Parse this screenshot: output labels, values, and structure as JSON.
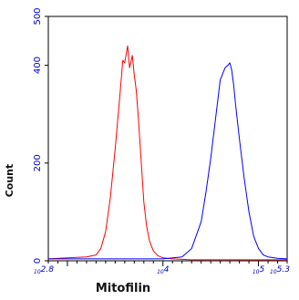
{
  "chart_data": {
    "type": "line",
    "title": "",
    "xlabel": "Mitofilin",
    "ylabel": "Count",
    "x_scale": "log",
    "xlim": [
      2.8,
      5.3
    ],
    "ylim": [
      0,
      500
    ],
    "grid": false,
    "y_ticks": [
      0,
      200,
      400,
      500
    ],
    "x_ticks": [
      {
        "value": 2.8,
        "label": "10^2.8"
      },
      {
        "value": 4,
        "label": "10^4"
      },
      {
        "value": 5,
        "label": "10^5"
      },
      {
        "value": 5.3,
        "label": "10^5.3"
      }
    ],
    "series": [
      {
        "color": "#ff0000",
        "x": [
          2.8,
          3.0,
          3.2,
          3.3,
          3.35,
          3.4,
          3.45,
          3.5,
          3.55,
          3.58,
          3.6,
          3.63,
          3.65,
          3.68,
          3.7,
          3.72,
          3.74,
          3.76,
          3.78,
          3.8,
          3.83,
          3.86,
          3.9,
          3.95,
          4.0,
          4.1,
          4.3,
          5.3
        ],
        "y": [
          4,
          6,
          8,
          12,
          25,
          60,
          130,
          230,
          340,
          410,
          405,
          440,
          395,
          420,
          380,
          350,
          300,
          240,
          180,
          120,
          70,
          40,
          20,
          10,
          6,
          4,
          2,
          2
        ]
      },
      {
        "color": "#0000ff",
        "x": [
          2.8,
          4.0,
          4.2,
          4.3,
          4.4,
          4.45,
          4.5,
          4.55,
          4.6,
          4.65,
          4.68,
          4.7,
          4.72,
          4.74,
          4.76,
          4.8,
          4.85,
          4.9,
          4.95,
          5.0,
          5.05,
          5.1,
          5.2,
          5.3
        ],
        "y": [
          4,
          4,
          8,
          25,
          80,
          140,
          210,
          290,
          370,
          395,
          400,
          405,
          390,
          360,
          320,
          250,
          170,
          100,
          50,
          25,
          12,
          8,
          5,
          4
        ]
      }
    ]
  }
}
